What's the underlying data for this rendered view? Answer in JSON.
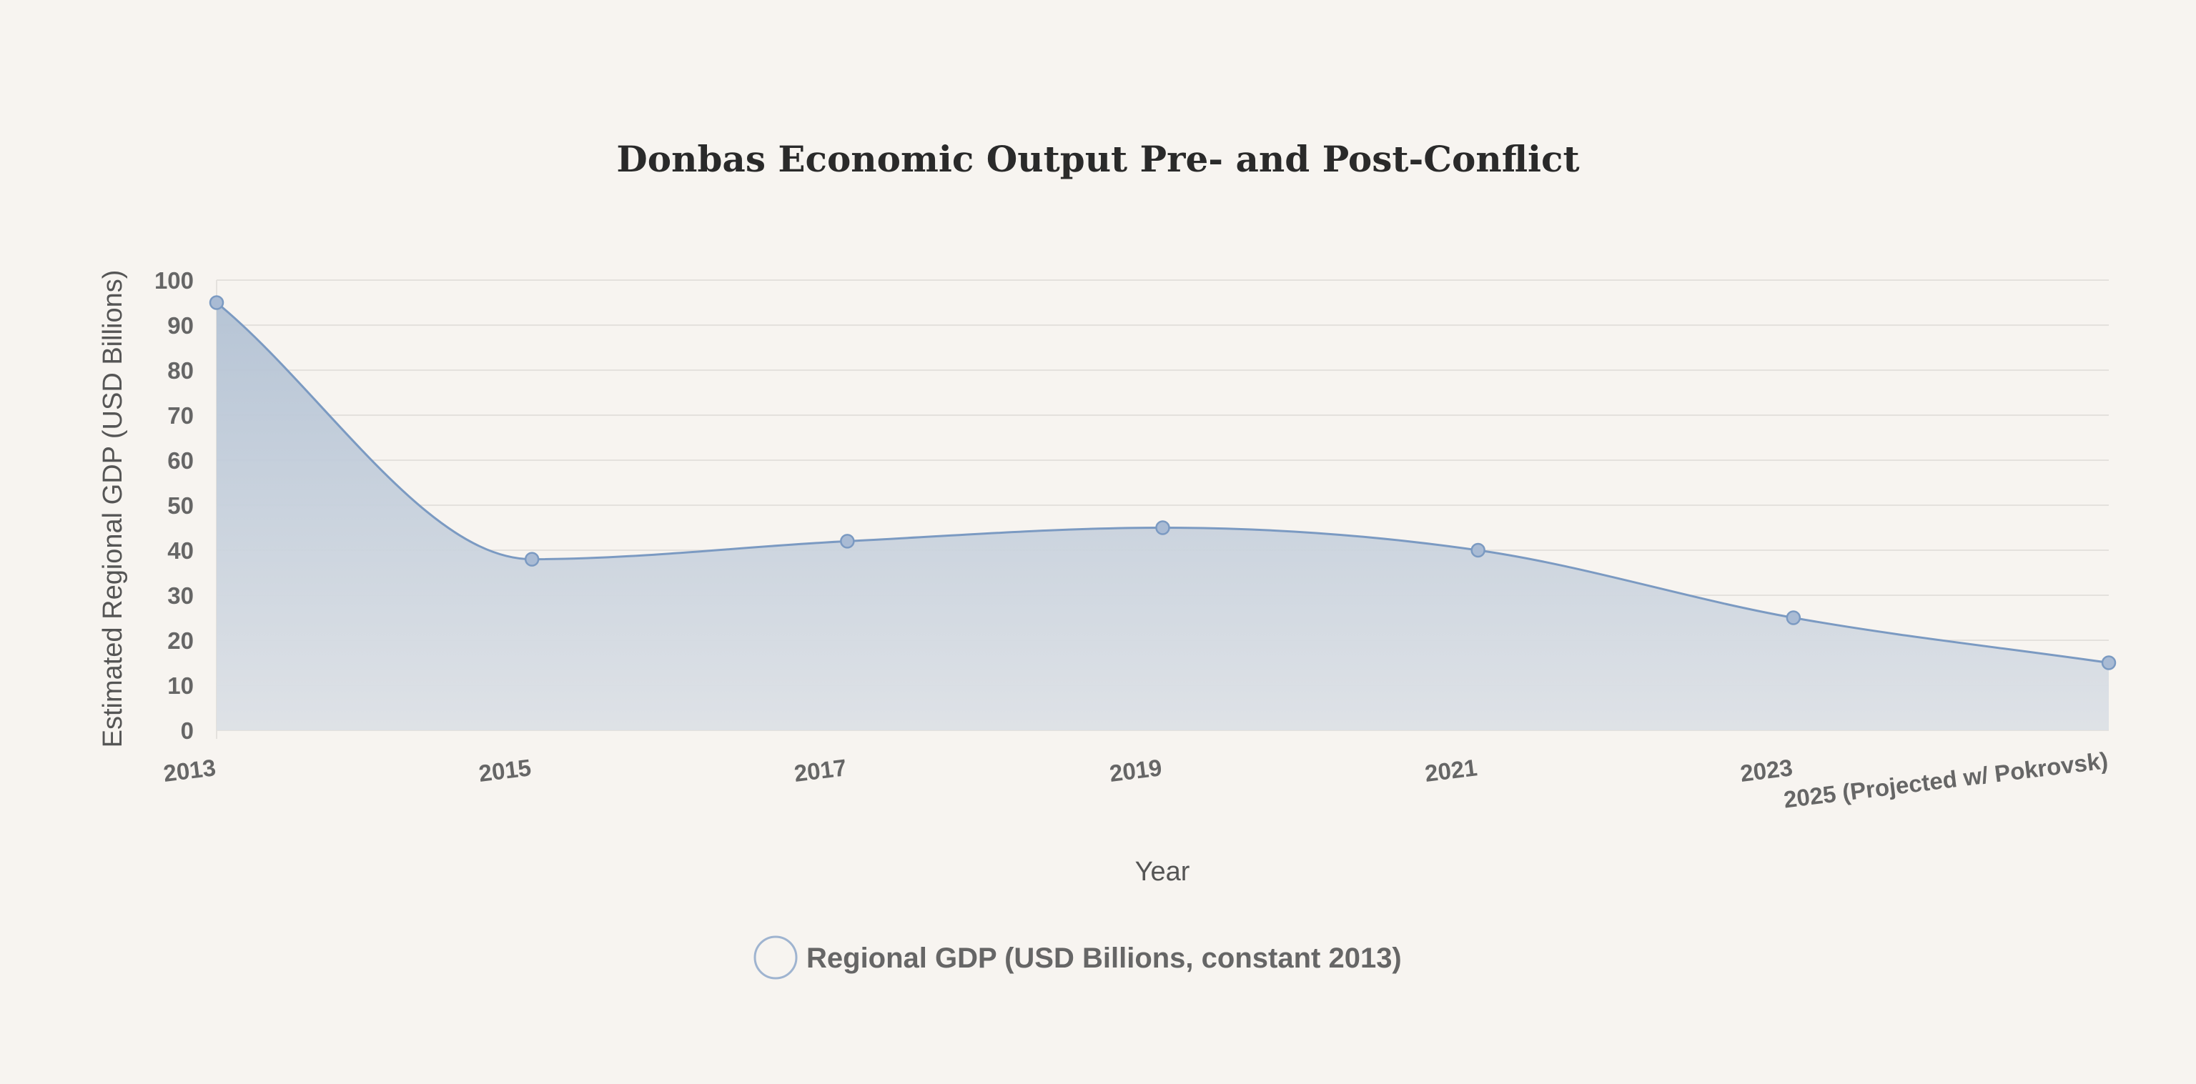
{
  "chart_data": {
    "type": "area",
    "title": "Donbas Economic Output Pre- and Post-Conflict",
    "xlabel": "Year",
    "ylabel": "Estimated Regional GDP (USD Billions)",
    "categories": [
      "2013",
      "2015",
      "2017",
      "2019",
      "2021",
      "2023",
      "2025 (Projected w/ Pokrovsk)"
    ],
    "series": [
      {
        "name": "Regional GDP (USD Billions, constant 2013)",
        "values": [
          95,
          38,
          42,
          45,
          40,
          25,
          15
        ]
      }
    ],
    "ylim": [
      0,
      100
    ],
    "yticks": [
      0,
      10,
      20,
      30,
      40,
      50,
      60,
      70,
      80,
      90,
      100
    ],
    "grid": true,
    "legend": "bottom-center",
    "colors": {
      "line": "#7b9ac2",
      "fill_top": "#b3c2d4",
      "fill_bottom": "#dde1e6",
      "marker_fill": "#a9bbd4"
    }
  }
}
